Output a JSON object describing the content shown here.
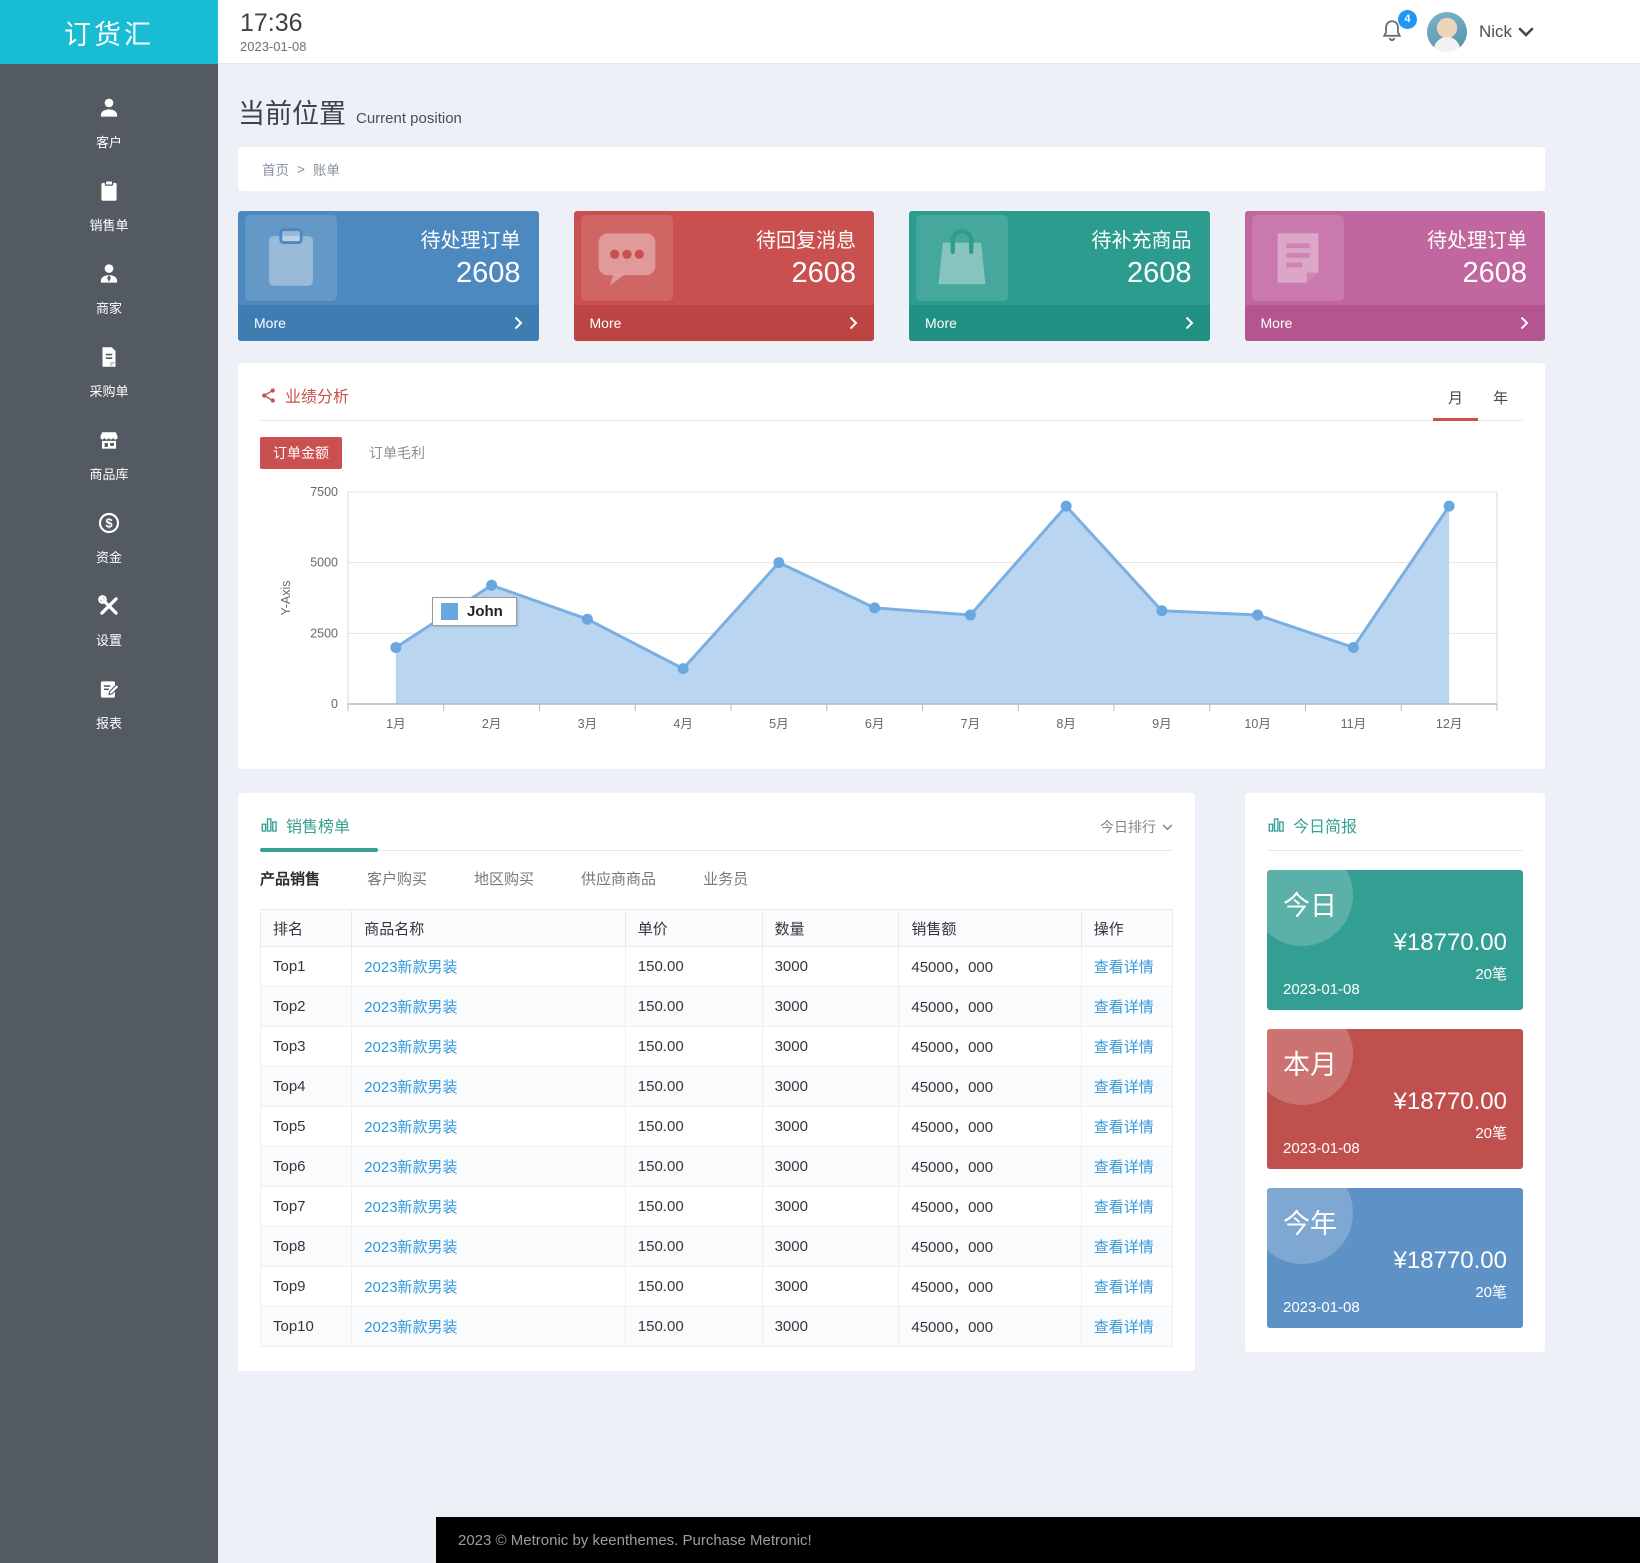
{
  "app": {
    "logo": "订货汇",
    "footer": "2023 © Metronic by keenthemes. Purchase Metronic!"
  },
  "header": {
    "time": "17:36",
    "date": "2023-01-08",
    "notification_count": "4",
    "user_name": "Nick"
  },
  "sidebar": {
    "items": [
      {
        "label": "客户",
        "icon": "customers-icon"
      },
      {
        "label": "销售单",
        "icon": "sales-order-icon"
      },
      {
        "label": "商家",
        "icon": "merchant-icon"
      },
      {
        "label": "采购单",
        "icon": "purchase-order-icon"
      },
      {
        "label": "商品库",
        "icon": "product-library-icon"
      },
      {
        "label": "资金",
        "icon": "funds-icon"
      },
      {
        "label": "设置",
        "icon": "settings-icon"
      },
      {
        "label": "报表",
        "icon": "report-icon"
      }
    ]
  },
  "page": {
    "title": "当前位置",
    "subtitle": "Current position",
    "breadcrumb": [
      "首页",
      "账单"
    ],
    "breadcrumb_separator": ">"
  },
  "stat_cards": [
    {
      "title": "待处理订单",
      "value": "2608",
      "more_label": "More",
      "icon": "clipboard-icon",
      "bg": "#4d89be",
      "footer_bg": "#3e7cb2"
    },
    {
      "title": "待回复消息",
      "value": "2608",
      "more_label": "More",
      "icon": "chat-icon",
      "bg": "#c9504e",
      "footer_bg": "#bc4543"
    },
    {
      "title": "待补充商品",
      "value": "2608",
      "more_label": "More",
      "icon": "bag-icon",
      "bg": "#2b9c8e",
      "footer_bg": "#1f9082"
    },
    {
      "title": "待处理订单",
      "value": "2608",
      "more_label": "More",
      "icon": "document-icon",
      "bg": "#c2669f",
      "footer_bg": "#b55590"
    }
  ],
  "performance": {
    "title": "业绩分析",
    "period_tabs": [
      "月",
      "年"
    ],
    "active_period": "月",
    "toggles": [
      "订单金额",
      "订单毛利"
    ],
    "active_toggle": "订单金额"
  },
  "chart_data": {
    "type": "area",
    "title": "业绩分析 - 订单金额",
    "categories": [
      "1月",
      "2月",
      "3月",
      "4月",
      "5月",
      "6月",
      "7月",
      "8月",
      "9月",
      "10月",
      "11月",
      "12月"
    ],
    "series": [
      {
        "name": "John",
        "values": [
          2000,
          4200,
          3000,
          1250,
          5000,
          3400,
          3150,
          7000,
          3300,
          3150,
          2000,
          7000
        ]
      }
    ],
    "xlabel": "",
    "ylabel": "Y-Axis",
    "ylim": [
      0,
      7500
    ],
    "yticks": [
      0,
      2500,
      5000,
      7500
    ],
    "grid": true,
    "legend_position": "inside-left",
    "line_color": "#7aafe3",
    "fill_color": "#b9d5f0",
    "dot_color": "#69a7e1"
  },
  "sales": {
    "title": "销售榜单",
    "filter": "今日排行",
    "tabs": [
      "产品销售",
      "客户购买",
      "地区购买",
      "供应商商品",
      "业务员"
    ],
    "active_tab": "产品销售",
    "table": {
      "headers": [
        "排名",
        "商品名称",
        "单价",
        "数量",
        "销售额",
        "操作"
      ],
      "rows": [
        {
          "rank": "Top1",
          "red": true,
          "name": "2023新款男装",
          "price": "150.00",
          "qty": "3000",
          "amount": "45000，000",
          "action": "查看详情"
        },
        {
          "rank": "Top2",
          "red": true,
          "name": "2023新款男装",
          "price": "150.00",
          "qty": "3000",
          "amount": "45000，000",
          "action": "查看详情"
        },
        {
          "rank": "Top3",
          "red": true,
          "name": "2023新款男装",
          "price": "150.00",
          "qty": "3000",
          "amount": "45000，000",
          "action": "查看详情"
        },
        {
          "rank": "Top4",
          "red": false,
          "name": "2023新款男装",
          "price": "150.00",
          "qty": "3000",
          "amount": "45000，000",
          "action": "查看详情"
        },
        {
          "rank": "Top5",
          "red": false,
          "name": "2023新款男装",
          "price": "150.00",
          "qty": "3000",
          "amount": "45000，000",
          "action": "查看详情"
        },
        {
          "rank": "Top6",
          "red": false,
          "name": "2023新款男装",
          "price": "150.00",
          "qty": "3000",
          "amount": "45000，000",
          "action": "查看详情"
        },
        {
          "rank": "Top7",
          "red": false,
          "name": "2023新款男装",
          "price": "150.00",
          "qty": "3000",
          "amount": "45000，000",
          "action": "查看详情"
        },
        {
          "rank": "Top8",
          "red": false,
          "name": "2023新款男装",
          "price": "150.00",
          "qty": "3000",
          "amount": "45000，000",
          "action": "查看详情"
        },
        {
          "rank": "Top9",
          "red": false,
          "name": "2023新款男装",
          "price": "150.00",
          "qty": "3000",
          "amount": "45000，000",
          "action": "查看详情"
        },
        {
          "rank": "Top10",
          "red": false,
          "name": "2023新款男装",
          "price": "150.00",
          "qty": "3000",
          "amount": "45000，000",
          "action": "查看详情"
        }
      ]
    }
  },
  "briefing": {
    "title": "今日简报",
    "cards": [
      {
        "label": "今日",
        "amount": "¥18770.00",
        "count": "20笔",
        "date": "2023-01-08",
        "bg": "#339e92"
      },
      {
        "label": "本月",
        "amount": "¥18770.00",
        "count": "20笔",
        "date": "2023-01-08",
        "bg": "#c0504e"
      },
      {
        "label": "今年",
        "amount": "¥18770.00",
        "count": "20笔",
        "date": "2023-01-08",
        "bg": "#5e92c6"
      }
    ]
  }
}
